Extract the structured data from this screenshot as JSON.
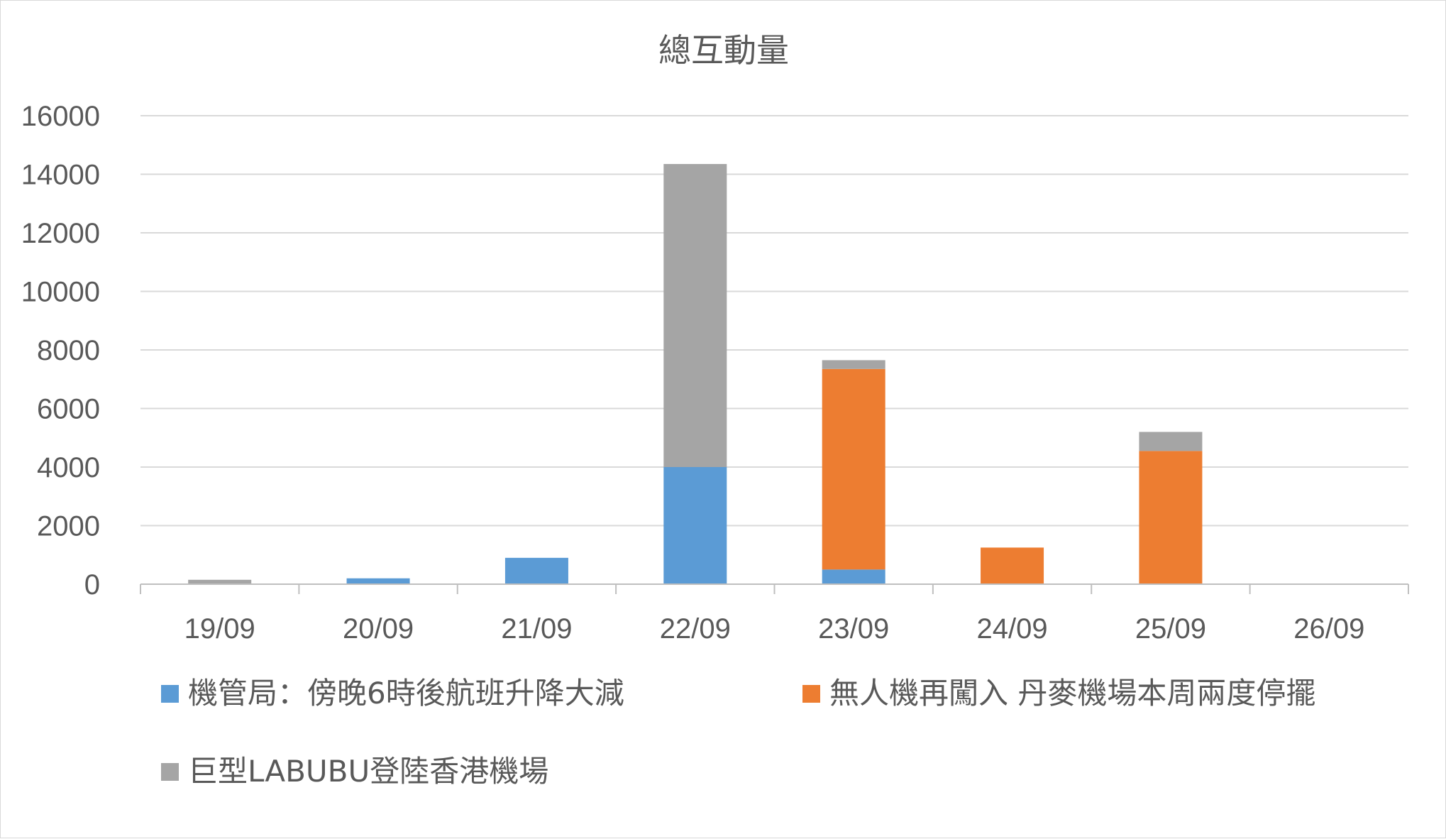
{
  "chart_data": {
    "type": "bar",
    "stacked": true,
    "title": "總互動量",
    "xlabel": "",
    "ylabel": "",
    "ylim": [
      0,
      16000
    ],
    "yticks": [
      0,
      2000,
      4000,
      6000,
      8000,
      10000,
      12000,
      14000,
      16000
    ],
    "grid": true,
    "legend_position": "bottom",
    "categories": [
      "19/09",
      "20/09",
      "21/09",
      "22/09",
      "23/09",
      "24/09",
      "25/09",
      "26/09"
    ],
    "series": [
      {
        "name": "機管局：傍晚6時後航班升降大減",
        "color": "#5b9bd5",
        "values": [
          0,
          200,
          900,
          4000,
          500,
          0,
          0,
          0
        ]
      },
      {
        "name": "無人機再闖入 丹麥機場本周兩度停擺",
        "color": "#ed7d31",
        "values": [
          0,
          0,
          0,
          0,
          6850,
          1250,
          4550,
          0
        ]
      },
      {
        "name": "巨型LABUBU登陸香港機場",
        "color": "#a5a5a5",
        "values": [
          150,
          0,
          0,
          10350,
          300,
          0,
          650,
          0
        ]
      }
    ]
  }
}
